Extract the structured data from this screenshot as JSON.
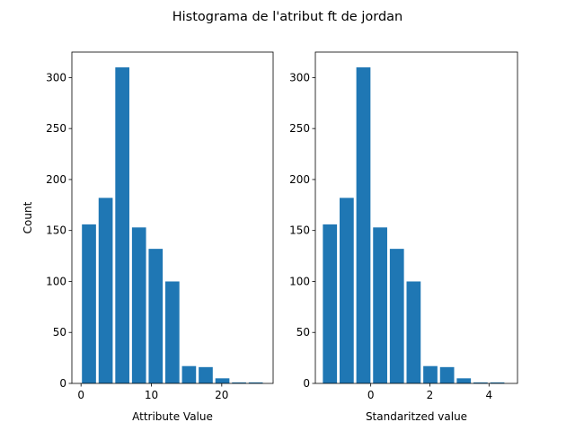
{
  "figure": {
    "suptitle": "Histograma de l'atribut ft de jordan"
  },
  "chart_data": [
    {
      "type": "bar",
      "title": "",
      "xlabel": "Attribute Value",
      "ylabel": "Count",
      "xlim": [
        -1.3,
        27.3
      ],
      "ylim": [
        0,
        325
      ],
      "xticks": [
        0,
        10,
        20
      ],
      "yticks": [
        0,
        50,
        100,
        150,
        200,
        250,
        300
      ],
      "bar_width": 2.0,
      "x": [
        1.13,
        3.5,
        5.87,
        8.24,
        10.61,
        12.98,
        15.35,
        17.72,
        20.09,
        22.46,
        24.83
      ],
      "values": [
        156,
        182,
        310,
        153,
        132,
        100,
        17,
        16,
        5,
        1,
        1
      ],
      "color": "#1f77b4"
    },
    {
      "type": "bar",
      "title": "",
      "xlabel": "Standaritzed value",
      "ylabel": "",
      "xlim": [
        -1.873,
        4.963
      ],
      "ylim": [
        0,
        325
      ],
      "xticks": [
        0,
        2,
        4
      ],
      "yticks": [
        0,
        50,
        100,
        150,
        200,
        250,
        300
      ],
      "bar_width": 0.478,
      "x": [
        -1.38,
        -0.814,
        -0.248,
        0.318,
        0.884,
        1.45,
        2.016,
        2.582,
        3.148,
        3.714,
        4.28
      ],
      "values": [
        156,
        182,
        310,
        153,
        132,
        100,
        17,
        16,
        5,
        1,
        1
      ],
      "color": "#1f77b4"
    }
  ]
}
